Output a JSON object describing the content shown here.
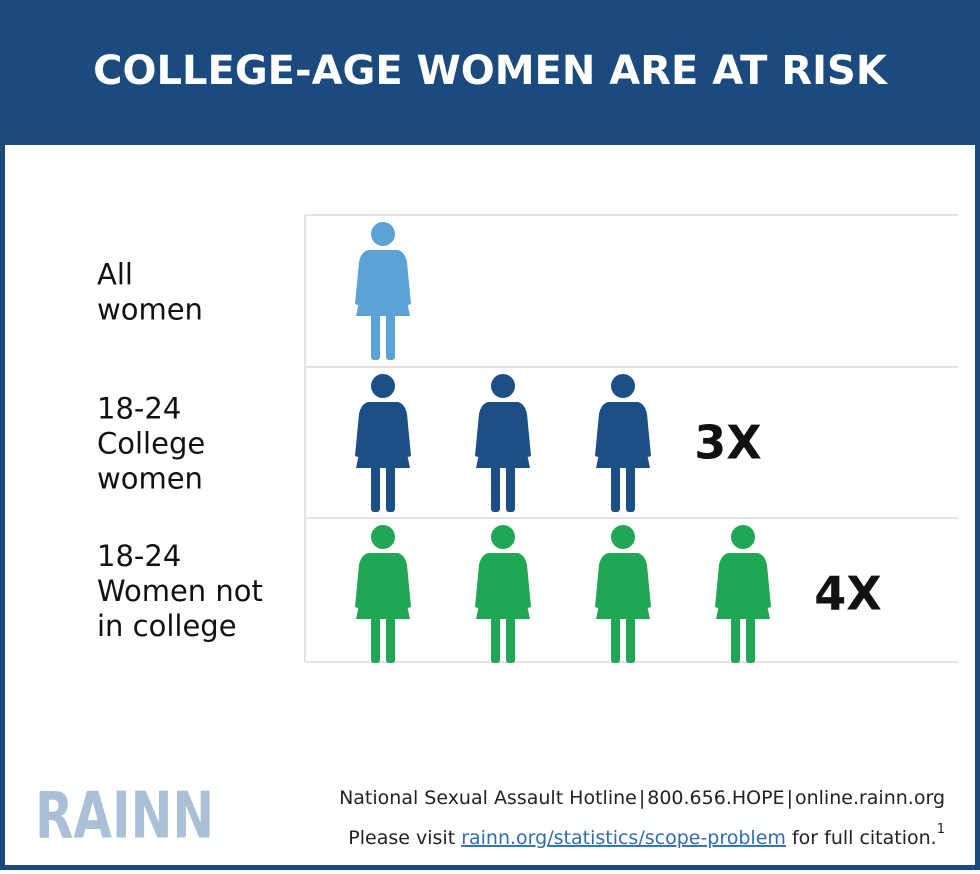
{
  "header": {
    "title": "COLLEGE-AGE WOMEN ARE AT RISK"
  },
  "rows": [
    {
      "label": [
        "All",
        "women"
      ],
      "count": 1,
      "color": "#5ba3d6"
    },
    {
      "label": [
        "18-24",
        "College",
        "women"
      ],
      "count": 3,
      "color": "#1b4f85",
      "multiplier": "3X"
    },
    {
      "label": [
        "18-24",
        "Women not",
        "in college"
      ],
      "count": 4,
      "color": "#1fa755",
      "multiplier": "4X"
    }
  ],
  "footer": {
    "logo": "RAINN",
    "hotline": [
      "National Sexual Assault Hotline",
      "|",
      "800.656.HOPE",
      "|",
      "online.rainn.org"
    ],
    "citation": {
      "before": "Please visit",
      "link": "rainn.org/statistics/scope-problem",
      "after": "for full citation.",
      "note": "1"
    }
  }
}
